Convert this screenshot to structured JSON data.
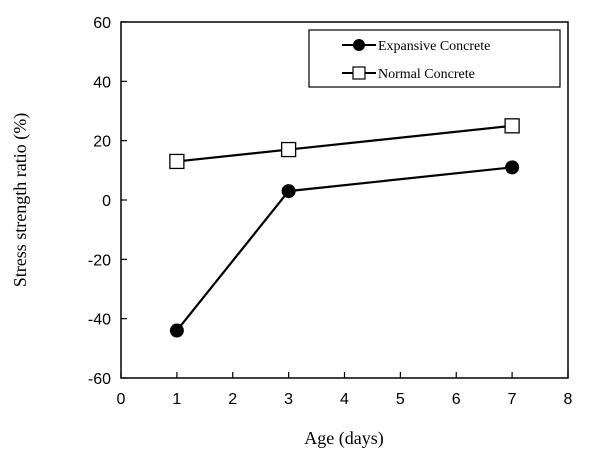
{
  "chart_data": {
    "type": "line",
    "title": "",
    "xlabel": "Age (days)",
    "ylabel": "Stress strength ratio (%)",
    "xlim": [
      0,
      8
    ],
    "ylim": [
      -60,
      60
    ],
    "x_ticks": [
      "0",
      "1",
      "2",
      "3",
      "4",
      "5",
      "6",
      "7",
      "8"
    ],
    "y_ticks": [
      "-60",
      "-40",
      "-20",
      "0",
      "20",
      "40",
      "60"
    ],
    "grid": false,
    "legend_position": "top-right",
    "series": [
      {
        "name": "Expansive Concrete",
        "marker": "filled-circle",
        "color": "#000000",
        "x": [
          1,
          3,
          7
        ],
        "y": [
          -44,
          3,
          11
        ]
      },
      {
        "name": "Normal Concrete",
        "marker": "open-square",
        "color": "#000000",
        "x": [
          1,
          3,
          7
        ],
        "y": [
          13,
          17,
          25
        ]
      }
    ]
  }
}
